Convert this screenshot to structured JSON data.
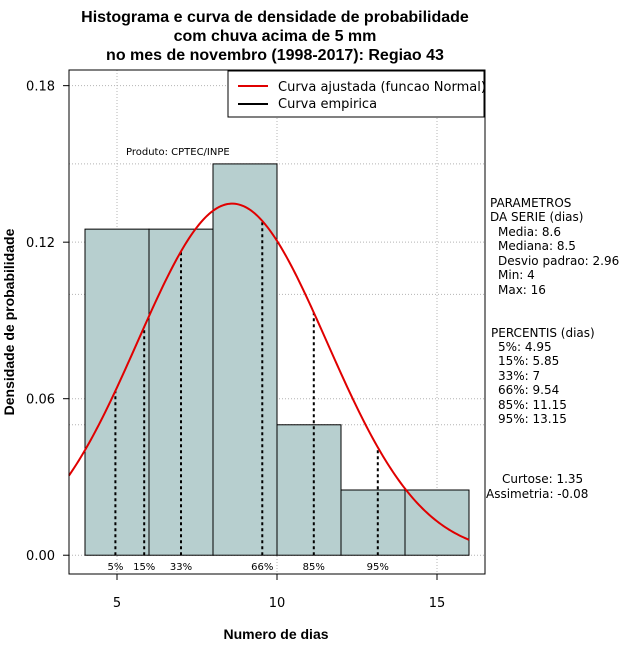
{
  "chart_data": {
    "type": "histogram",
    "title_lines": [
      "Histograma e curva de densidade de probabilidade",
      "com chuva acima de 5 mm",
      "no mes de novembro (1998-2017): Regiao 43"
    ],
    "xlabel": "Numero de dias",
    "ylabel": "Densidade de probabilidade",
    "xlim": [
      3.5,
      16.5
    ],
    "ylim": [
      -0.0072,
      0.186
    ],
    "x_ticks": [
      5,
      10,
      15
    ],
    "y_ticks": [
      0.0,
      0.06,
      0.12,
      0.18
    ],
    "y_tick_labels": [
      "0.00",
      "0.06",
      "0.12",
      "0.18"
    ],
    "bins": [
      {
        "x0": 4,
        "x1": 6,
        "density": 0.125
      },
      {
        "x0": 6,
        "x1": 8,
        "density": 0.125
      },
      {
        "x0": 8,
        "x1": 10,
        "density": 0.15
      },
      {
        "x0": 10,
        "x1": 12,
        "density": 0.05
      },
      {
        "x0": 12,
        "x1": 14,
        "density": 0.025
      },
      {
        "x0": 14,
        "x1": 16,
        "density": 0.025
      }
    ],
    "normal_fit": {
      "mean": 8.6,
      "sd": 2.96,
      "x_from": 3.5,
      "x_to": 16
    },
    "percentile_lines": [
      {
        "label": "5%",
        "x": 4.95
      },
      {
        "label": "15%",
        "x": 5.85
      },
      {
        "label": "33%",
        "x": 7
      },
      {
        "label": "66%",
        "x": 9.54
      },
      {
        "label": "85%",
        "x": 11.15
      },
      {
        "label": "95%",
        "x": 13.15
      }
    ],
    "legend": [
      {
        "label": "Curva ajustada (funcao Normal)",
        "color": "#e00000"
      },
      {
        "label": "Curva empirica",
        "color": "#000000"
      }
    ],
    "product_label": "Produto: CPTEC/INPE",
    "parametros": {
      "header": [
        "PARAMETROS",
        "DA SERIE (dias)"
      ],
      "lines": [
        "Media: 8.6",
        "Mediana: 8.5",
        "Desvio padrao: 2.96",
        "Min: 4",
        "Max: 16"
      ]
    },
    "percentis": {
      "header": "PERCENTIS (dias)",
      "lines": [
        "5%: 4.95",
        "15%: 5.85",
        "33%: 7",
        "66%: 9.54",
        "85%: 11.15",
        "95%: 13.15"
      ]
    },
    "stats": [
      "Curtose: 1.35",
      "Assimetria: -0.08"
    ]
  },
  "colors": {
    "bar_fill": "#b7cfcf",
    "curve": "#e00000",
    "grid": "#b4b4b4"
  }
}
